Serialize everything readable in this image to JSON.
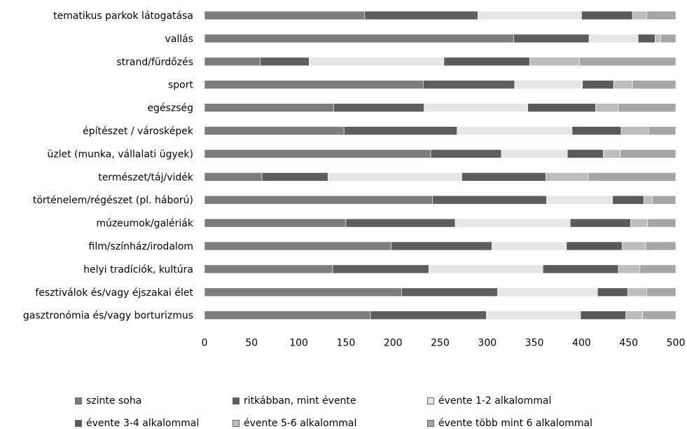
{
  "chart_data": {
    "type": "bar",
    "orientation": "horizontal",
    "stacked": true,
    "categories": [
      "tematikus parkok látogatása",
      "vallás",
      "strand/fürdőzés",
      "sport",
      "egészség",
      "építészet / városképek",
      "üzlet (munka, vállalati ügyek)",
      "természet/táj/vidék",
      "történelem/régészet (pl. háború)",
      "múzeumok/galériák",
      "film/színház/irodalom",
      "helyi tradíciók, kultúra",
      "fesztiválok és/vagy éjszakai élet",
      "gasztronómia és/vagy borturizmus"
    ],
    "series": [
      {
        "name": "szinte soha",
        "color": "#7d7d7d",
        "values": [
          170,
          328,
          59,
          232,
          137,
          148,
          240,
          61,
          242,
          150,
          198,
          136,
          209,
          176
        ]
      },
      {
        "name": "ritkábban, mint évente",
        "color": "#5e5e5e",
        "values": [
          120,
          80,
          52,
          97,
          96,
          120,
          75,
          70,
          121,
          116,
          107,
          102,
          102,
          123
        ]
      },
      {
        "name": "évente 1-2 alkalommal",
        "color": "#e6e6e6",
        "values": [
          110,
          52,
          143,
          72,
          110,
          122,
          70,
          142,
          70,
          122,
          79,
          121,
          106,
          100
        ]
      },
      {
        "name": "évente 3-4 alkalommal",
        "color": "#5a5a5a",
        "values": [
          54,
          18,
          91,
          33,
          72,
          52,
          38,
          89,
          33,
          64,
          59,
          80,
          32,
          48
        ]
      },
      {
        "name": "évente 5-6 alkalommal",
        "color": "#bdbdbd",
        "values": [
          15,
          6,
          53,
          20,
          24,
          29,
          18,
          45,
          9,
          18,
          25,
          23,
          20,
          18
        ]
      },
      {
        "name": "évente több mint 6 alkalommal",
        "color": "#a6a6a6",
        "values": [
          31,
          16,
          102,
          46,
          61,
          29,
          59,
          93,
          25,
          30,
          32,
          38,
          31,
          35
        ]
      }
    ],
    "xlim": [
      0,
      500
    ],
    "xticks": [
      "0",
      "50",
      "100",
      "150",
      "200",
      "250",
      "300",
      "350",
      "400",
      "450",
      "500"
    ],
    "grid": false,
    "legend_position": "bottom"
  }
}
